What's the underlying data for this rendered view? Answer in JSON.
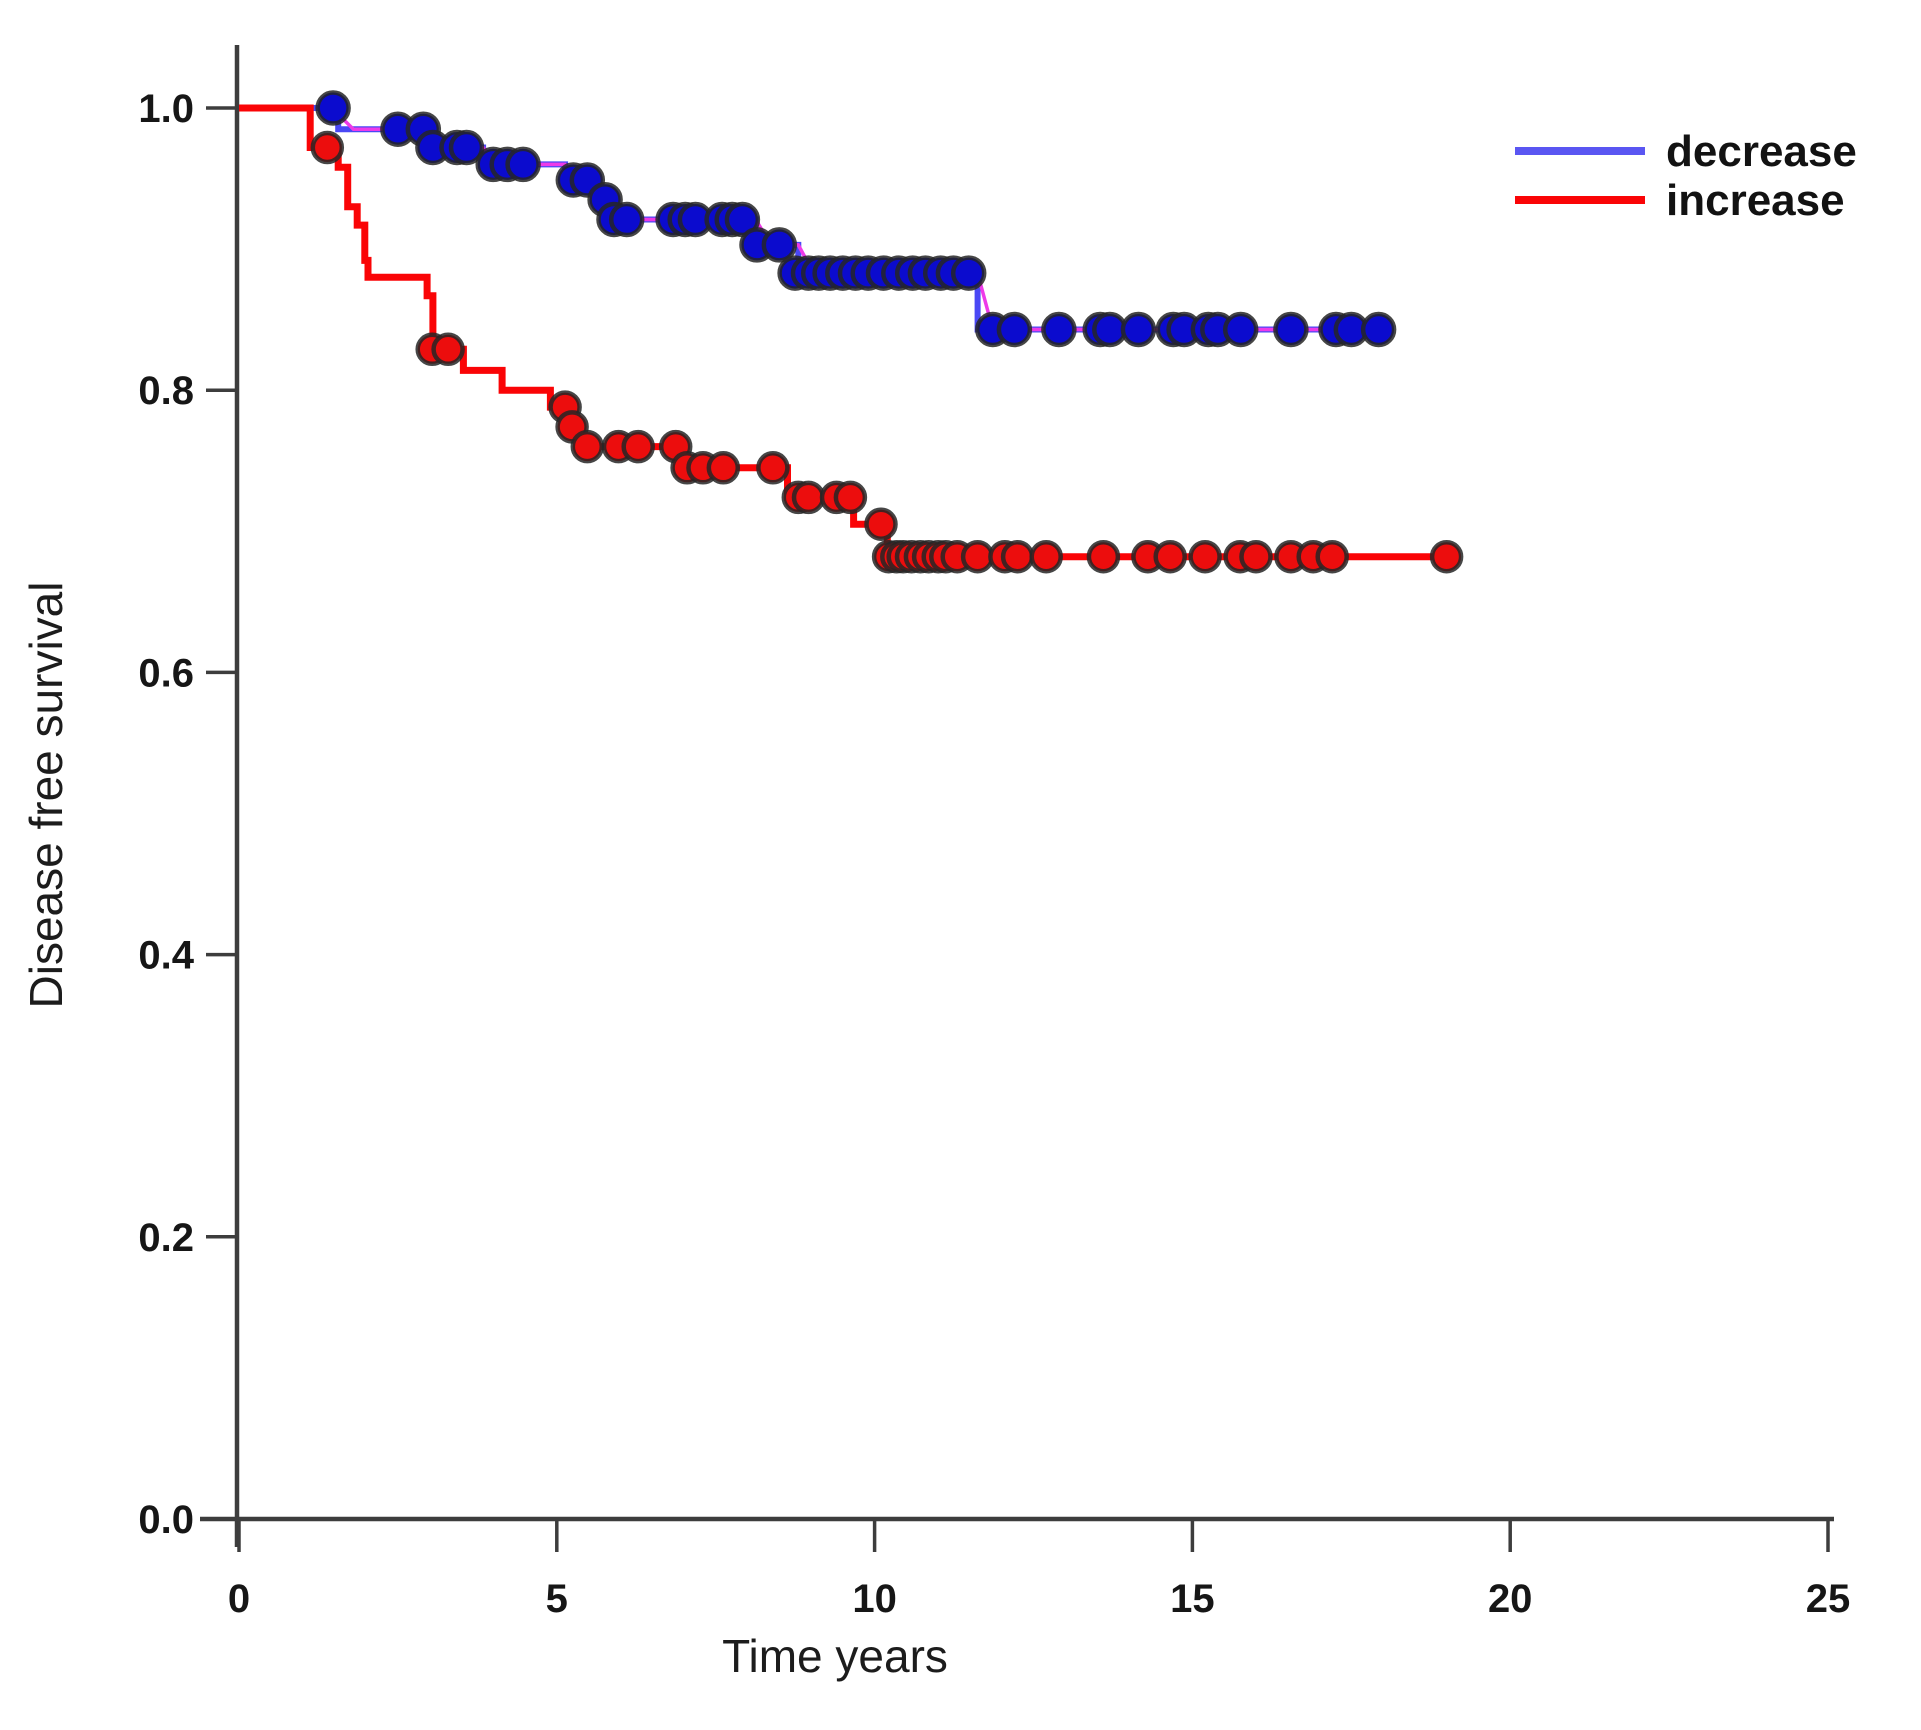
{
  "chart_data": {
    "type": "line",
    "subtype": "kaplan_meier_step_curves",
    "title": "",
    "xlabel": "Time years",
    "ylabel": "Disease free survival",
    "xlim": [
      0,
      25.2
    ],
    "ylim": [
      0.0,
      1.0
    ],
    "x_ticks": [
      0,
      5,
      10,
      15,
      20,
      25
    ],
    "y_ticks": [
      1.0,
      0.8,
      0.6,
      0.4,
      0.2,
      0.0
    ],
    "y_tick_labels": [
      "1.0",
      "0.8",
      "0.6",
      "0.4",
      "0.2",
      "0.0"
    ],
    "x_tick_labels": [
      "0",
      "5",
      "10",
      "15",
      "20",
      "25"
    ],
    "grid": false,
    "legend_position": "top-right",
    "colors": {
      "axis": "#3d3d3d",
      "blue_line": "#4a48f5",
      "blue_marker": "#0b0bce",
      "magenta_overlay": "#ee3ae8",
      "red_line": "#fa0406",
      "red_marker": "#ec0d0d",
      "marker_ring": "#262626"
    },
    "series": [
      {
        "name": "decrease",
        "line_color": "#4a48f5",
        "marker_color": "#0b0bce",
        "overlay_color": "#ee3ae8",
        "has_overlay": true,
        "end_time": 18.05,
        "steps": [
          [
            0,
            1.0
          ],
          [
            1.56,
            0.985
          ],
          [
            2.98,
            0.972
          ],
          [
            3.84,
            0.96
          ],
          [
            5.13,
            0.949
          ],
          [
            5.64,
            0.935
          ],
          [
            5.84,
            0.921
          ],
          [
            8.13,
            0.903
          ],
          [
            8.8,
            0.883
          ],
          [
            11.62,
            0.843
          ]
        ],
        "censor_marks": [
          [
            1.48,
            1.0
          ],
          [
            2.5,
            0.985
          ],
          [
            2.9,
            0.985
          ],
          [
            3.05,
            0.972
          ],
          [
            3.43,
            0.972
          ],
          [
            3.58,
            0.972
          ],
          [
            4.0,
            0.96
          ],
          [
            4.22,
            0.96
          ],
          [
            4.47,
            0.96
          ],
          [
            5.26,
            0.949
          ],
          [
            5.48,
            0.949
          ],
          [
            5.76,
            0.935
          ],
          [
            5.9,
            0.921
          ],
          [
            6.1,
            0.921
          ],
          [
            6.83,
            0.921
          ],
          [
            7.02,
            0.921
          ],
          [
            7.18,
            0.921
          ],
          [
            7.6,
            0.921
          ],
          [
            7.76,
            0.921
          ],
          [
            7.92,
            0.921
          ],
          [
            8.15,
            0.903
          ],
          [
            8.5,
            0.903
          ],
          [
            8.75,
            0.883
          ],
          [
            8.96,
            0.883
          ],
          [
            9.12,
            0.883
          ],
          [
            9.3,
            0.883
          ],
          [
            9.5,
            0.883
          ],
          [
            9.7,
            0.883
          ],
          [
            9.9,
            0.883
          ],
          [
            10.14,
            0.883
          ],
          [
            10.38,
            0.883
          ],
          [
            10.6,
            0.883
          ],
          [
            10.8,
            0.883
          ],
          [
            11.04,
            0.883
          ],
          [
            11.24,
            0.883
          ],
          [
            11.48,
            0.883
          ],
          [
            11.86,
            0.843
          ],
          [
            12.2,
            0.843
          ],
          [
            12.9,
            0.843
          ],
          [
            13.55,
            0.843
          ],
          [
            13.7,
            0.843
          ],
          [
            14.15,
            0.843
          ],
          [
            14.7,
            0.843
          ],
          [
            14.87,
            0.843
          ],
          [
            15.25,
            0.843
          ],
          [
            15.4,
            0.843
          ],
          [
            15.76,
            0.843
          ],
          [
            16.55,
            0.843
          ],
          [
            17.26,
            0.843
          ],
          [
            17.5,
            0.843
          ],
          [
            17.93,
            0.843
          ]
        ]
      },
      {
        "name": "increase",
        "line_color": "#fa0406",
        "marker_color": "#ec0d0d",
        "has_overlay": false,
        "end_time": 19.05,
        "steps": [
          [
            0,
            1.0
          ],
          [
            1.12,
            0.972
          ],
          [
            1.56,
            0.958
          ],
          [
            1.71,
            0.93
          ],
          [
            1.86,
            0.917
          ],
          [
            1.98,
            0.892
          ],
          [
            2.03,
            0.88
          ],
          [
            2.96,
            0.867
          ],
          [
            3.05,
            0.829
          ],
          [
            3.53,
            0.814
          ],
          [
            4.14,
            0.8
          ],
          [
            4.9,
            0.788
          ],
          [
            5.18,
            0.774
          ],
          [
            5.34,
            0.76
          ],
          [
            7.0,
            0.745
          ],
          [
            8.63,
            0.724
          ],
          [
            9.67,
            0.705
          ],
          [
            10.2,
            0.682
          ]
        ],
        "censor_marks": [
          [
            1.39,
            0.972
          ],
          [
            3.04,
            0.829
          ],
          [
            3.29,
            0.829
          ],
          [
            5.13,
            0.788
          ],
          [
            5.24,
            0.774
          ],
          [
            5.48,
            0.76
          ],
          [
            5.97,
            0.76
          ],
          [
            6.28,
            0.76
          ],
          [
            6.87,
            0.76
          ],
          [
            7.05,
            0.745
          ],
          [
            7.3,
            0.745
          ],
          [
            7.62,
            0.745
          ],
          [
            8.4,
            0.745
          ],
          [
            8.8,
            0.724
          ],
          [
            8.96,
            0.724
          ],
          [
            9.4,
            0.724
          ],
          [
            9.62,
            0.724
          ],
          [
            10.1,
            0.705
          ],
          [
            10.22,
            0.682
          ],
          [
            10.35,
            0.682
          ],
          [
            10.45,
            0.682
          ],
          [
            10.58,
            0.682
          ],
          [
            10.72,
            0.682
          ],
          [
            10.85,
            0.682
          ],
          [
            11.0,
            0.682
          ],
          [
            11.12,
            0.682
          ],
          [
            11.3,
            0.682
          ],
          [
            11.62,
            0.682
          ],
          [
            12.05,
            0.682
          ],
          [
            12.25,
            0.682
          ],
          [
            12.7,
            0.682
          ],
          [
            13.6,
            0.682
          ],
          [
            14.3,
            0.682
          ],
          [
            14.65,
            0.682
          ],
          [
            15.2,
            0.682
          ],
          [
            15.75,
            0.682
          ],
          [
            16.0,
            0.682
          ],
          [
            16.55,
            0.682
          ],
          [
            16.9,
            0.682
          ],
          [
            17.2,
            0.682
          ],
          [
            19.0,
            0.682
          ]
        ]
      }
    ],
    "legend": [
      {
        "label": "decrease",
        "color": "#5a56f2"
      },
      {
        "label": "increase",
        "color": "#fa0406"
      }
    ]
  }
}
